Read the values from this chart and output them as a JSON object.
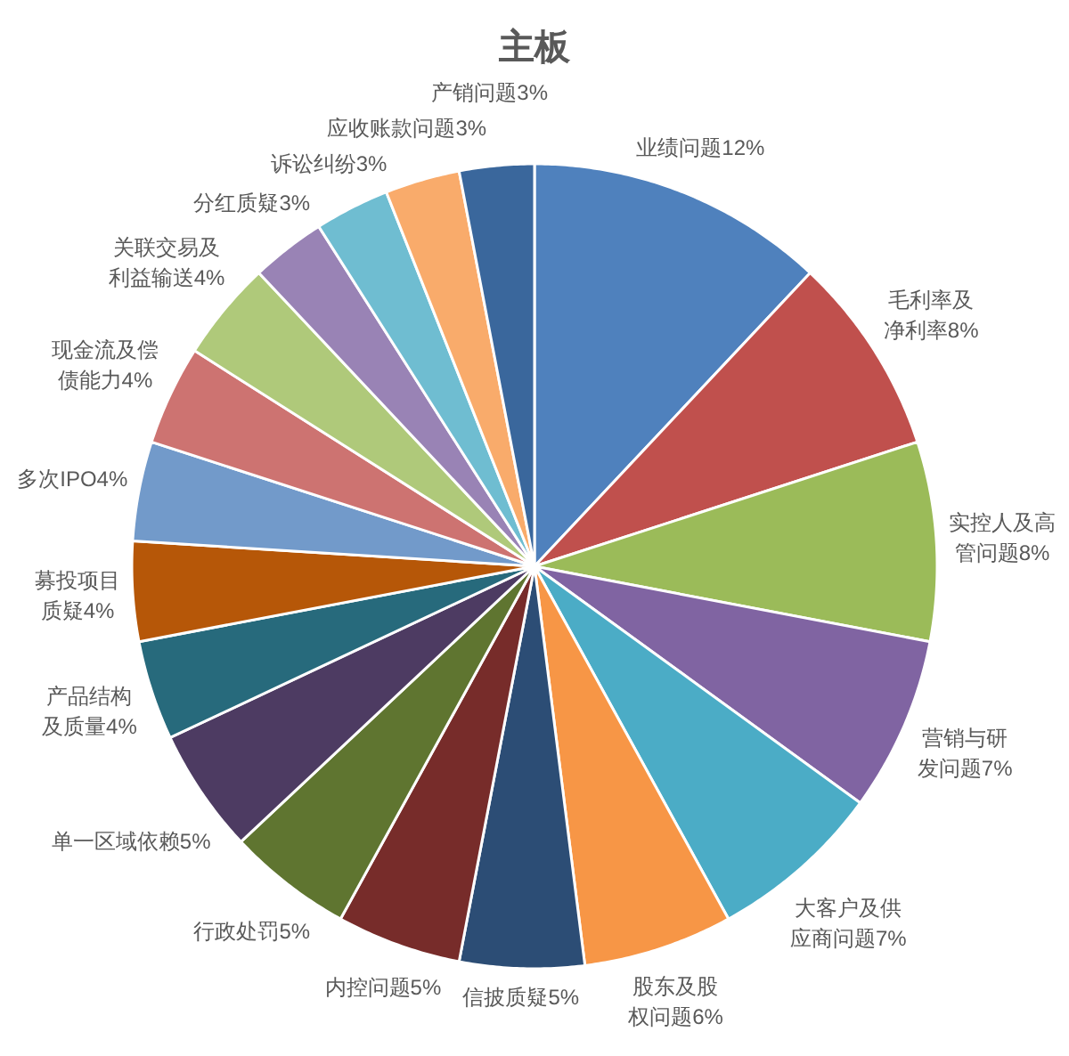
{
  "chart_data": {
    "type": "pie",
    "title": "主板",
    "categories": [
      "业绩问题",
      "毛利率及净利率",
      "实控人及高管问题",
      "营销与研发问题",
      "大客户及供应商问题",
      "股东及股权问题",
      "信披质疑",
      "内控问题",
      "行政处罚",
      "单一区域依赖",
      "产品结构及质量",
      "募投项目质疑",
      "多次IPO",
      "现金流及偿债能力",
      "关联交易及利益输送",
      "分红质疑",
      "诉讼纠纷",
      "应收账款问题",
      "产销问题"
    ],
    "values": [
      12,
      8,
      8,
      7,
      7,
      6,
      5,
      5,
      5,
      5,
      4,
      4,
      4,
      4,
      4,
      3,
      3,
      3,
      3
    ],
    "value_labels": [
      "12%",
      "8%",
      "8%",
      "7%",
      "7%",
      "6%",
      "5%",
      "5%",
      "5%",
      "5%",
      "4%",
      "4%",
      "4%",
      "4%",
      "4%",
      "3%",
      "3%",
      "3%",
      "3%"
    ],
    "colors": [
      "#4f81bd",
      "#c0504d",
      "#9bbb59",
      "#8064a2",
      "#4bacc6",
      "#f79646",
      "#2c4d75",
      "#772c2a",
      "#5f7530",
      "#4d3b62",
      "#276a7c",
      "#b65708",
      "#729aca",
      "#cd7371",
      "#afc97a",
      "#9983b5",
      "#6fbdd1",
      "#f9ab6b",
      "#3a679c"
    ]
  }
}
